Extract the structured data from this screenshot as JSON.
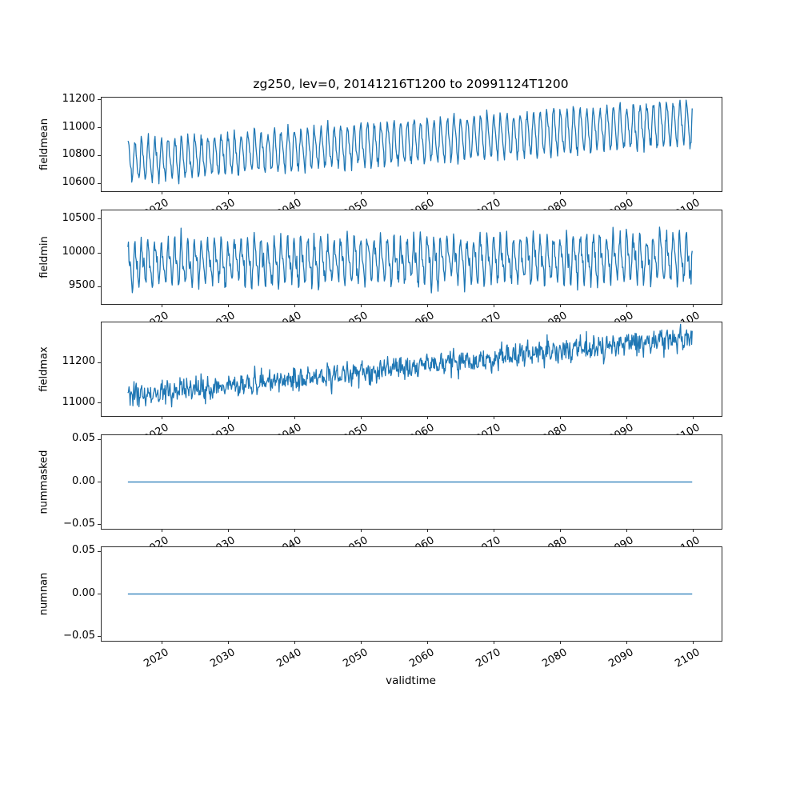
{
  "figure": {
    "title": "zg250, lev=0, 20141216T1200 to 20991124T1200",
    "xlabel": "validtime",
    "background": "#ffffff",
    "frame_color": "#2b2b2b",
    "line_color": "#1f77b4"
  },
  "chart_data": {
    "type": "line",
    "title": "zg250, lev=0, 20141216T1200 to 20991124T1200",
    "xlabel": "validtime",
    "legend": "none",
    "grid": false,
    "x_start": 2014.958,
    "x_end": 2099.875,
    "points_per_year": 12,
    "xlim": [
      2011.0,
      2104.3
    ],
    "xticks": {
      "values": [
        2020,
        2030,
        2040,
        2050,
        2060,
        2070,
        2080,
        2090,
        2100
      ],
      "labels": [
        "2020",
        "2030",
        "2040",
        "2050",
        "2060",
        "2070",
        "2080",
        "2090",
        "2100"
      ],
      "rotation_deg": 30
    },
    "subplots": [
      {
        "name": "fieldmean",
        "ylabel": "fieldmean",
        "ylim": [
          10545,
          11215
        ],
        "yticks": {
          "values": [
            10600,
            10800,
            11000,
            11200
          ],
          "labels": [
            "10600",
            "10800",
            "11000",
            "11200"
          ]
        },
        "series": {
          "kind": "seasonal-trend",
          "start_mean": 10762,
          "end_mean": 11034,
          "trend_per_year": 3.2,
          "seasonal_amp": 132,
          "amp_growth": 0.12,
          "harmonic2_amp": 25,
          "noise_sd": 20,
          "seed": 11
        }
      },
      {
        "name": "fieldmin",
        "ylabel": "fieldmin",
        "ylim": [
          9240,
          10630
        ],
        "yticks": {
          "values": [
            9500,
            10000,
            10500
          ],
          "labels": [
            "9500",
            "10000",
            "10500"
          ]
        },
        "series": {
          "kind": "seasonal-trend",
          "start_mean": 9845,
          "end_mean": 9930,
          "trend_per_year": 1.0,
          "seasonal_amp": 255,
          "amp_growth": 0.12,
          "harmonic2_amp": 115,
          "noise_sd": 65,
          "seed": 22
        }
      },
      {
        "name": "fieldmax",
        "ylabel": "fieldmax",
        "ylim": [
          10935,
          11400
        ],
        "yticks": {
          "values": [
            11000,
            11200
          ],
          "labels": [
            "11000",
            "11200"
          ]
        },
        "series": {
          "kind": "seasonal-trend",
          "start_mean": 11030,
          "end_mean": 11327,
          "trend_per_year": 3.5,
          "seasonal_amp": 18,
          "amp_growth": 0.1,
          "harmonic2_amp": 8,
          "noise_sd": 26,
          "seed": 33
        }
      },
      {
        "name": "nummasked",
        "ylabel": "nummasked",
        "ylim": [
          -0.055,
          0.055
        ],
        "yticks": {
          "values": [
            0.05,
            0.0,
            -0.05
          ],
          "labels": [
            "0.05",
            "0.00",
            "−0.05"
          ]
        },
        "series": {
          "kind": "constant",
          "value": 0.0
        }
      },
      {
        "name": "numnan",
        "ylabel": "numnan",
        "ylim": [
          -0.055,
          0.055
        ],
        "yticks": {
          "values": [
            0.05,
            0.0,
            -0.05
          ],
          "labels": [
            "0.05",
            "0.00",
            "−0.05"
          ]
        },
        "series": {
          "kind": "constant",
          "value": 0.0
        }
      }
    ]
  }
}
